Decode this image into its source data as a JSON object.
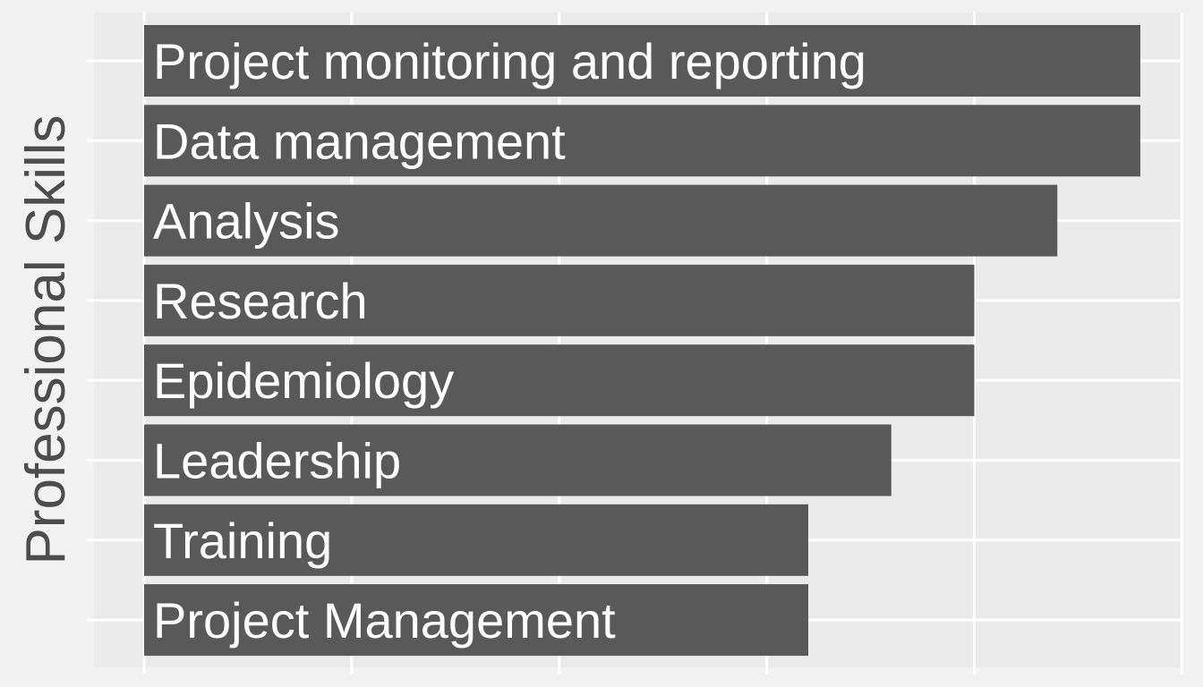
{
  "chart_data": {
    "type": "bar",
    "orientation": "horizontal",
    "ylabel": "Professional Skills",
    "xlabel": "",
    "categories": [
      "Project monitoring and reporting",
      "Data management",
      "Analysis",
      "Research",
      "Epidemiology",
      "Leadership",
      "Training",
      "Project Management"
    ],
    "values": [
      12,
      12,
      11,
      10,
      10,
      9,
      8,
      8
    ],
    "xlim": [
      0,
      12.5
    ],
    "grid": true,
    "bar_labels_inside": true,
    "colors": {
      "bar": "#595959",
      "panel": "#ebebeb",
      "background": "#f2f2f2",
      "grid_major": "#ffffff",
      "grid_minor": "#f4f4f4",
      "tick": "#ffffff",
      "label_text": "#ffffff",
      "axis_title": "#4d4d4d"
    }
  }
}
